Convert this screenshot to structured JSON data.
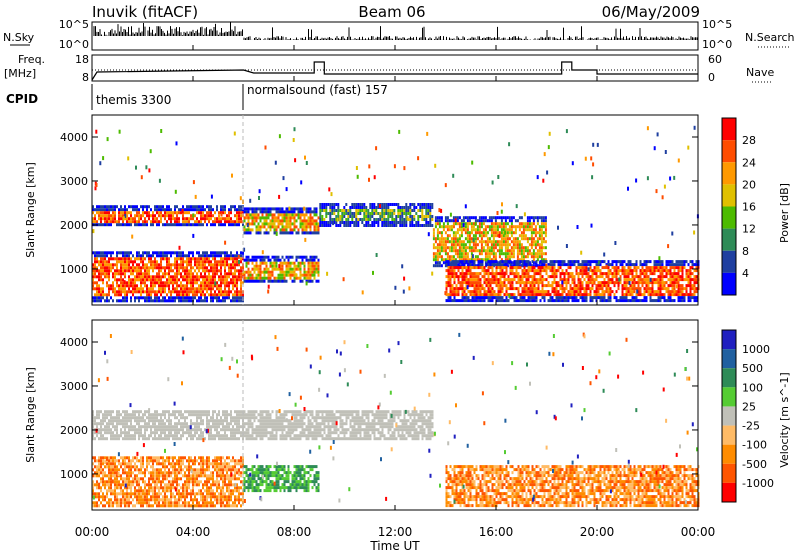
{
  "header": {
    "station": "Inuvik (fitACF)",
    "beam": "Beam 06",
    "date": "06/May/2009"
  },
  "nsky_panel": {
    "left_label": "N.Sky",
    "right_label": "N.Search",
    "left_ticks": [
      "10^5",
      "10^0"
    ],
    "right_ticks": [
      "10^5",
      "10^0"
    ]
  },
  "freq_panel": {
    "left_label": "Freq.",
    "left_unit": "[MHz]",
    "right_label": "Nave",
    "left_ticks": [
      "18",
      "8"
    ],
    "right_ticks": [
      "60",
      "0"
    ]
  },
  "cpid": {
    "label": "CPID",
    "modes": [
      {
        "text": "themis 3300",
        "start_hour": 0
      },
      {
        "text": "normalsound (fast) 157",
        "start_hour": 6
      }
    ]
  },
  "x_axis": {
    "label": "Time UT",
    "ticks": [
      "00:00",
      "04:00",
      "08:00",
      "12:00",
      "16:00",
      "20:00",
      "00:00"
    ],
    "range_hours": [
      0,
      24
    ]
  },
  "power_panel": {
    "y_label": "Slant Range [km]",
    "y_ticks": [
      "1000",
      "2000",
      "3000",
      "4000"
    ],
    "colorbar_label": "Power [dB]",
    "colorbar_ticks": [
      "28",
      "24",
      "20",
      "16",
      "12",
      "8",
      "4"
    ],
    "colors": [
      "#ff0000",
      "#ff4d00",
      "#ff9900",
      "#e0c000",
      "#4dbb00",
      "#2e8b57",
      "#1f3fa0",
      "#0000ff"
    ]
  },
  "velocity_panel": {
    "y_label": "Slant Range [km]",
    "y_ticks": [
      "1000",
      "2000",
      "3000",
      "4000"
    ],
    "colorbar_label": "Velocity [m s^-1]",
    "colorbar_ticks": [
      "1000",
      "500",
      "100",
      "25",
      "-25",
      "-100",
      "-500",
      "-1000"
    ],
    "colors": [
      "#2020c0",
      "#2060a0",
      "#2e8b57",
      "#55cc33",
      "#c0c0b8",
      "#ffbb66",
      "#ff8c00",
      "#ff5500",
      "#ff0000"
    ]
  },
  "chart_data": {
    "type": "heatmap",
    "x_range_hours": [
      0,
      24
    ],
    "y_range_km": [
      180,
      4500
    ],
    "power_bands": [
      {
        "h0": 0.0,
        "h1": 6.0,
        "r0": 2000,
        "r1": 2450,
        "level": "high"
      },
      {
        "h0": 0.0,
        "h1": 6.0,
        "r0": 300,
        "r1": 1400,
        "level": "high"
      },
      {
        "h0": 6.0,
        "h1": 9.0,
        "r0": 1800,
        "r1": 2400,
        "level": "mid"
      },
      {
        "h0": 6.0,
        "h1": 9.0,
        "r0": 700,
        "r1": 1300,
        "level": "mid"
      },
      {
        "h0": 9.0,
        "h1": 13.5,
        "r0": 2000,
        "r1": 2500,
        "level": "low"
      },
      {
        "h0": 13.5,
        "h1": 18.0,
        "r0": 1100,
        "r1": 2200,
        "level": "mid"
      },
      {
        "h0": 14.0,
        "h1": 24.0,
        "r0": 300,
        "r1": 1200,
        "level": "high"
      }
    ],
    "velocity_bands": [
      {
        "h0": 0.0,
        "h1": 6.0,
        "r0": 1800,
        "r1": 2450,
        "level": "near-zero"
      },
      {
        "h0": 0.0,
        "h1": 6.0,
        "r0": 300,
        "r1": 1400,
        "level": "negative"
      },
      {
        "h0": 6.0,
        "h1": 9.0,
        "r0": 600,
        "r1": 1200,
        "level": "positive"
      },
      {
        "h0": 6.0,
        "h1": 13.5,
        "r0": 1800,
        "r1": 2450,
        "level": "near-zero"
      },
      {
        "h0": 14.0,
        "h1": 24.0,
        "r0": 300,
        "r1": 1200,
        "level": "negative"
      }
    ]
  }
}
